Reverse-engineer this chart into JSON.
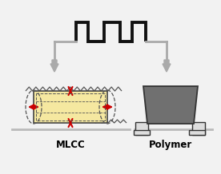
{
  "bg_color": "#f2f2f2",
  "square_wave_color": "#111111",
  "arrow_color": "#aaaaaa",
  "arrow_fill": "#aaaaaa",
  "mlcc_body_color": "#f5e8a0",
  "mlcc_body_edge": "#444444",
  "mlcc_electrode_color": "#cc0000",
  "mlcc_dashed_color": "#555555",
  "mlcc_end_cap_color": "#cccccc",
  "polymer_body_color": "#707070",
  "polymer_lead_color": "#dddddd",
  "polymer_edge_color": "#333333",
  "ground_line_color": "#bbbbbb",
  "label_mlcc": "MLCC",
  "label_polymer": "Polymer",
  "label_fontsize": 8.5,
  "label_fontweight": "bold",
  "wave_lw": 2.8,
  "arrow_lw": 2.0
}
